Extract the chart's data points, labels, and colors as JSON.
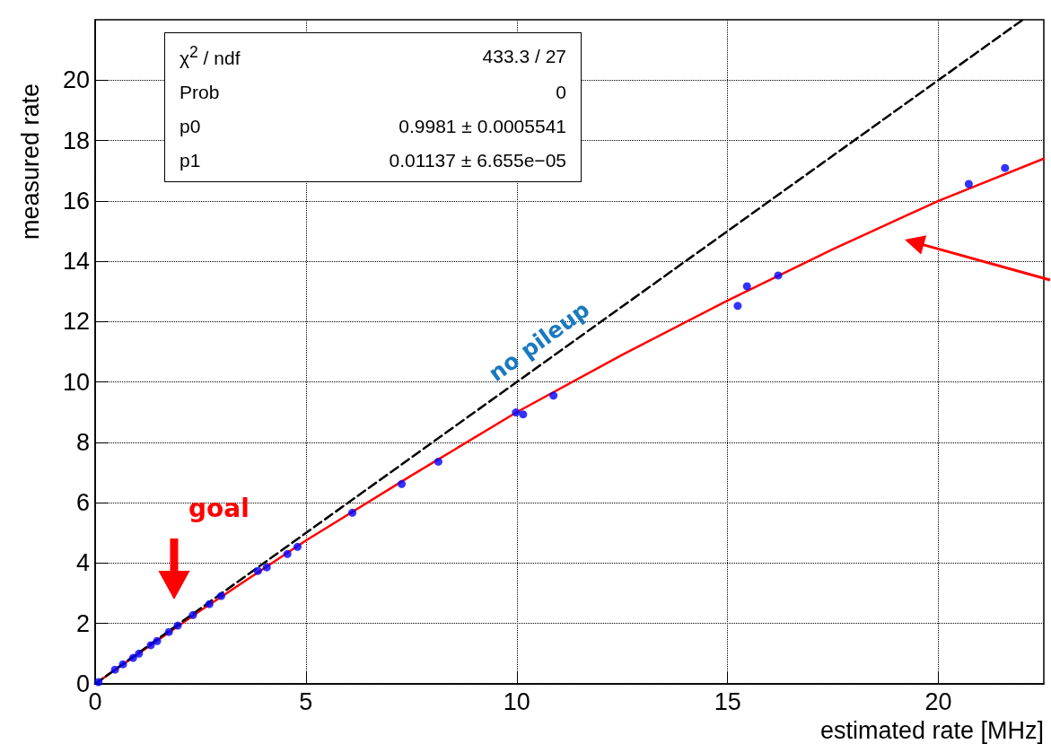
{
  "chart_data": {
    "type": "scatter",
    "xlabel": "estimated rate [MHz]",
    "ylabel": "measured rate",
    "xlim": [
      0,
      22.5
    ],
    "xticks": [
      0,
      5,
      10,
      15,
      20
    ],
    "ylim": [
      0,
      22
    ],
    "yticks": [
      0,
      2,
      4,
      6,
      8,
      10,
      12,
      14,
      16,
      18,
      20
    ],
    "grid": true,
    "marker": "circle",
    "series": [
      {
        "color": "#0000ff",
        "x": [
          0.08,
          0.47,
          0.66,
          0.9,
          1.04,
          1.32,
          1.47,
          1.75,
          1.96,
          2.32,
          2.71,
          2.99,
          3.86,
          4.07,
          4.56,
          4.8,
          6.1,
          7.27,
          8.14,
          9.98,
          10.15,
          10.87,
          15.24,
          15.46,
          16.2,
          20.72,
          21.58
        ],
        "values": [
          0.06,
          0.47,
          0.65,
          0.86,
          1.0,
          1.28,
          1.42,
          1.72,
          1.93,
          2.28,
          2.64,
          2.91,
          3.74,
          3.86,
          4.3,
          4.54,
          5.67,
          6.62,
          7.36,
          8.99,
          8.93,
          9.55,
          12.52,
          13.17,
          13.53,
          16.56,
          17.09
        ]
      },
      {
        "type": "line",
        "color": "#ff0000",
        "marker": "none",
        "line_style": "solid",
        "x": [
          0,
          2.5,
          5,
          7.5,
          10,
          12.5,
          15,
          17.5,
          20,
          22.5
        ],
        "values": [
          0,
          2.43,
          4.75,
          6.9,
          9.0,
          10.9,
          12.7,
          14.4,
          16.0,
          17.4
        ]
      },
      {
        "type": "line",
        "color": "#000000",
        "marker": "none",
        "line_style": "dashed",
        "x": [
          0,
          22
        ],
        "values": [
          0,
          22
        ]
      }
    ],
    "annotations": [
      "χ$^{2}$ / ndf",
      "433.3 / 27",
      "Prob",
      "0",
      "p0",
      "0.9981 ± 0.0005541",
      "p1",
      "0.01137 ± 6.655e−05",
      "no pileup",
      "goal"
    ]
  }
}
